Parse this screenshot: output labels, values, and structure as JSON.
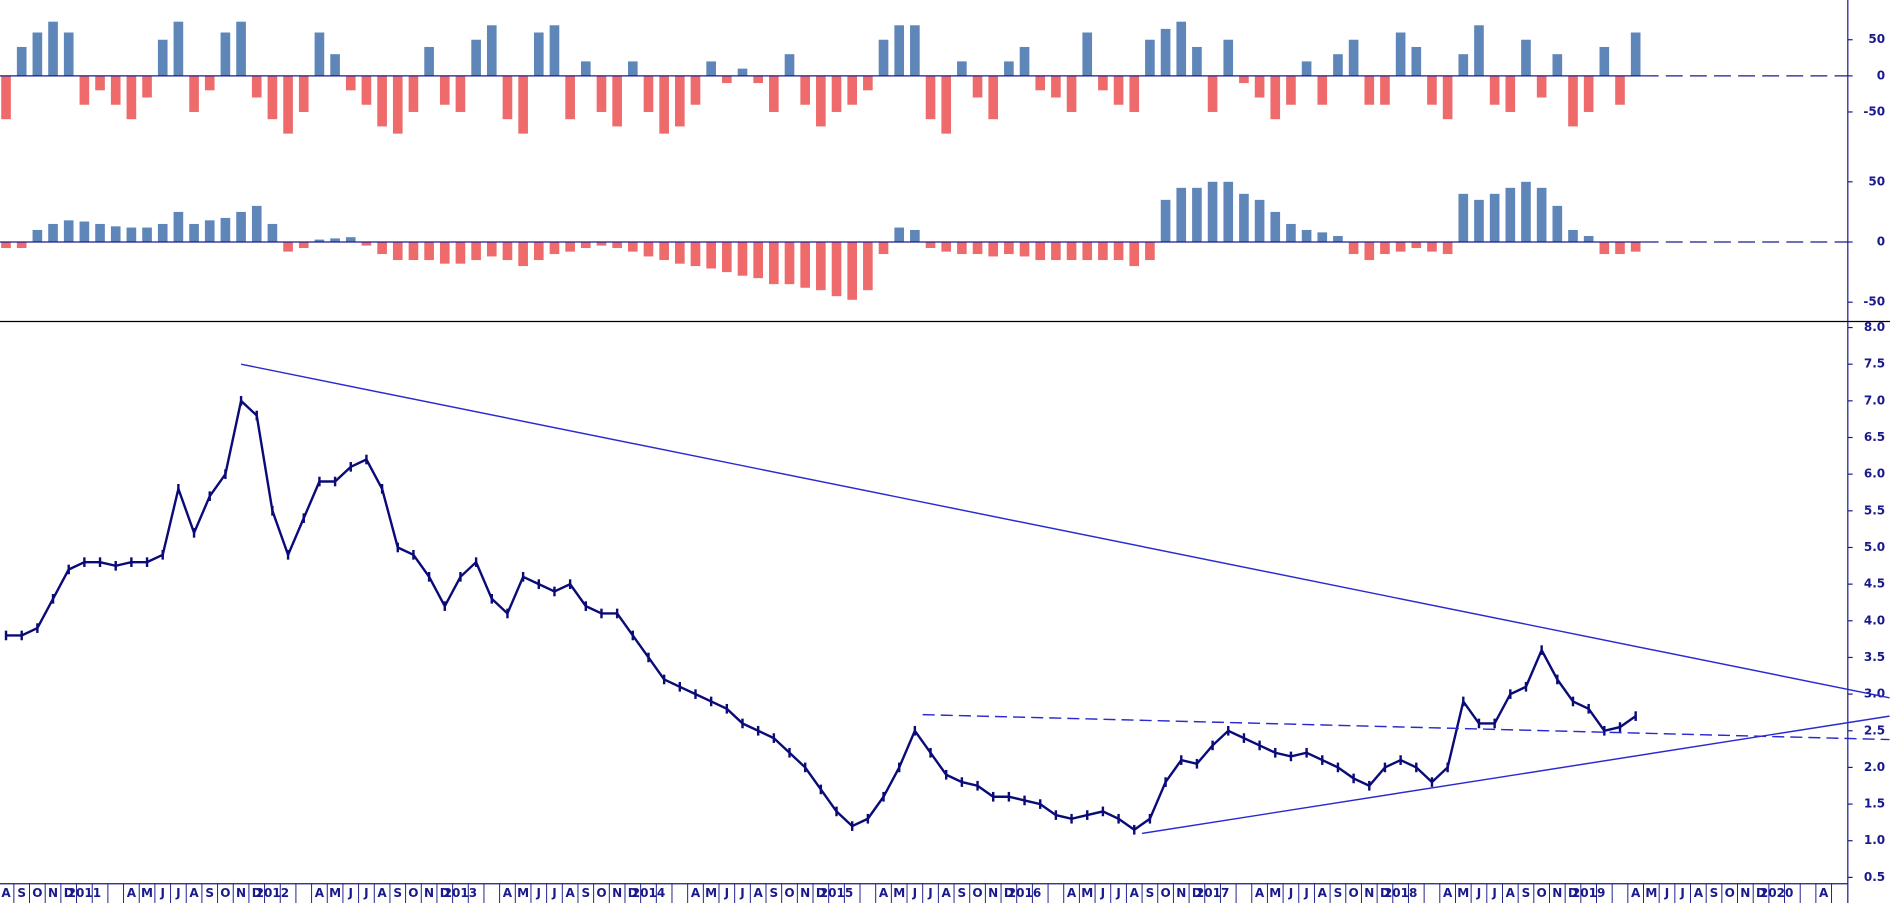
{
  "chart_data": [
    {
      "type": "bar",
      "ylim": [
        -110,
        105
      ],
      "yticks": [
        50,
        0,
        -50
      ],
      "positive_color": "#5f86b8",
      "negative_color": "#ef6b6b",
      "zero_line": true,
      "values": [
        -60,
        40,
        60,
        75,
        60,
        -40,
        -20,
        -40,
        -60,
        -30,
        50,
        75,
        -50,
        -20,
        60,
        75,
        -30,
        -60,
        -80,
        -50,
        60,
        30,
        -20,
        -40,
        -70,
        -80,
        -50,
        40,
        -40,
        -50,
        50,
        70,
        -60,
        -80,
        60,
        70,
        -60,
        20,
        -50,
        -70,
        20,
        -50,
        -80,
        -70,
        -40,
        20,
        -10,
        10,
        -10,
        -50,
        30,
        -40,
        -70,
        -50,
        -40,
        -20,
        50,
        70,
        70,
        -60,
        -80,
        20,
        -30,
        -60,
        20,
        40,
        -20,
        -30,
        -50,
        60,
        -20,
        -40,
        -50,
        50,
        65,
        75,
        40,
        -50,
        50,
        -10,
        -30,
        -60,
        -40,
        20,
        -40,
        30,
        50,
        -40,
        -40,
        60,
        40,
        -40,
        -60,
        30,
        70,
        -40,
        -50,
        50,
        -30,
        30,
        -70,
        -50,
        40,
        -40,
        60,
        null,
        null,
        null,
        null,
        null,
        null,
        null,
        null,
        null,
        null,
        null,
        null
      ]
    },
    {
      "type": "bar",
      "ylim": [
        -65,
        68
      ],
      "yticks": [
        50,
        0,
        -50
      ],
      "positive_color": "#5f86b8",
      "negative_color": "#ef6b6b",
      "zero_line": true,
      "values": [
        -5,
        -5,
        10,
        15,
        18,
        17,
        15,
        13,
        12,
        12,
        15,
        25,
        15,
        18,
        20,
        25,
        30,
        15,
        -8,
        -5,
        2,
        3,
        4,
        -3,
        -10,
        -15,
        -15,
        -15,
        -18,
        -18,
        -15,
        -12,
        -15,
        -20,
        -15,
        -10,
        -8,
        -5,
        -3,
        -5,
        -8,
        -12,
        -15,
        -18,
        -20,
        -22,
        -25,
        -28,
        -30,
        -35,
        -35,
        -38,
        -40,
        -45,
        -48,
        -40,
        -10,
        12,
        10,
        -5,
        -8,
        -10,
        -10,
        -12,
        -10,
        -12,
        -15,
        -15,
        -15,
        -15,
        -15,
        -15,
        -20,
        -15,
        35,
        45,
        45,
        50,
        50,
        40,
        35,
        25,
        15,
        10,
        8,
        5,
        -10,
        -15,
        -10,
        -8,
        -5,
        -8,
        -10,
        40,
        35,
        40,
        45,
        50,
        45,
        30,
        10,
        5,
        -10,
        -10,
        -8,
        null,
        null,
        null,
        null,
        null,
        null,
        null,
        null,
        null,
        null,
        null,
        null
      ]
    },
    {
      "type": "line",
      "color": "#0a0a78",
      "trend_color": "#2a2ad0",
      "categories": [
        "A",
        "S",
        "O",
        "N",
        "D",
        "2011",
        null,
        null,
        "A",
        "M",
        "J",
        "J",
        "A",
        "S",
        "O",
        "N",
        "D",
        "2012",
        null,
        null,
        "A",
        "M",
        "J",
        "J",
        "A",
        "S",
        "O",
        "N",
        "D",
        "2013",
        null,
        null,
        "A",
        "M",
        "J",
        "J",
        "A",
        "S",
        "O",
        "N",
        "D",
        "2014",
        null,
        null,
        "A",
        "M",
        "J",
        "J",
        "A",
        "S",
        "O",
        "N",
        "D",
        "2015",
        null,
        null,
        "A",
        "M",
        "J",
        "J",
        "A",
        "S",
        "O",
        "N",
        "D",
        "2016",
        null,
        null,
        "A",
        "M",
        "J",
        "J",
        "A",
        "S",
        "O",
        "N",
        "D",
        "2017",
        null,
        null,
        "A",
        "M",
        "J",
        "J",
        "A",
        "S",
        "O",
        "N",
        "D",
        "2018",
        null,
        null,
        "A",
        "M",
        "J",
        "J",
        "A",
        "S",
        "O",
        "N",
        "D",
        "2019",
        null,
        null,
        "A",
        "M",
        "J",
        "J",
        "A",
        "S",
        "O",
        "N",
        "D",
        "2020",
        null,
        null,
        "A"
      ],
      "values": [
        3.8,
        3.8,
        3.9,
        4.3,
        4.7,
        4.8,
        4.8,
        4.75,
        4.8,
        4.8,
        4.9,
        5.8,
        5.2,
        5.7,
        6.0,
        7.0,
        6.8,
        5.5,
        4.9,
        5.4,
        5.9,
        5.9,
        6.1,
        6.2,
        5.8,
        5.0,
        4.9,
        4.6,
        4.2,
        4.6,
        4.8,
        4.3,
        4.1,
        4.6,
        4.5,
        4.4,
        4.5,
        4.2,
        4.1,
        4.1,
        3.8,
        3.5,
        3.2,
        3.1,
        3.0,
        2.9,
        2.8,
        2.6,
        2.5,
        2.4,
        2.2,
        2.0,
        1.7,
        1.4,
        1.2,
        1.3,
        1.6,
        2.0,
        2.5,
        2.2,
        1.9,
        1.8,
        1.75,
        1.6,
        1.6,
        1.55,
        1.5,
        1.35,
        1.3,
        1.35,
        1.4,
        1.3,
        1.15,
        1.3,
        1.8,
        2.1,
        2.05,
        2.3,
        2.5,
        2.4,
        2.3,
        2.2,
        2.15,
        2.2,
        2.1,
        2.0,
        1.85,
        1.75,
        2.0,
        2.1,
        2.0,
        1.8,
        2.0,
        2.9,
        2.6,
        2.6,
        3.0,
        3.1,
        3.6,
        3.2,
        2.9,
        2.8,
        2.5,
        2.55,
        2.7,
        null,
        null,
        null,
        null,
        null,
        null,
        null,
        null,
        null,
        null,
        null,
        null
      ],
      "ylim": [
        0.2,
        8.05
      ],
      "yticks": [
        0.5,
        {
          "value": 1,
          "label": "1.0"
        },
        1.5,
        {
          "value": 2,
          "label": "2.0"
        },
        2.5,
        {
          "value": 3,
          "label": "3.0"
        },
        3.5,
        {
          "value": 4,
          "label": "4.0"
        },
        4.5,
        {
          "value": 5,
          "label": "5.0"
        },
        5.5,
        {
          "value": 6,
          "label": "6.0"
        },
        6.5,
        {
          "value": 7,
          "label": "7.0"
        },
        7.5,
        {
          "value": 8,
          "label": "8.0"
        }
      ],
      "trendlines": [
        {
          "start": [
            15,
            7.5
          ],
          "end": [
            120.2,
            2.95
          ],
          "dashed": false
        },
        {
          "start": [
            72.5,
            1.1
          ],
          "end": [
            120.2,
            2.7
          ],
          "dashed": false
        },
        {
          "start": [
            58.5,
            2.72
          ],
          "end": [
            120.2,
            2.38
          ],
          "dashed": true
        }
      ]
    }
  ]
}
